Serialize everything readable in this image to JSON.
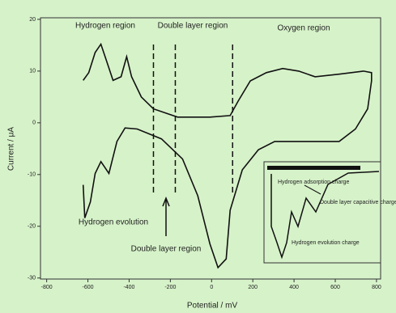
{
  "chart_data": {
    "type": "line",
    "x_label": "Potential / mV",
    "y_label": "Current / μA",
    "xlim": [
      -830,
      820
    ],
    "ylim": [
      -30.2,
      20.3
    ],
    "xticks": [
      -800,
      -600,
      -400,
      -200,
      0,
      200,
      400,
      600,
      800
    ],
    "yticks": [
      -30,
      -20,
      -10,
      0,
      10,
      20
    ],
    "region_lines": [
      -282,
      -176,
      102
    ],
    "series": [
      {
        "color": "#111111",
        "x": [
          -623,
          -596,
          -565,
          -537,
          -510,
          -478,
          -439,
          -412,
          -388,
          -341,
          -282,
          -165,
          -8,
          90,
          129,
          188,
          266,
          345,
          423,
          502,
          619,
          737,
          776,
          776,
          757,
          698,
          619,
          463,
          306,
          227,
          149,
          90,
          71,
          31,
          -8,
          -67,
          -141,
          -243,
          -361,
          -420,
          -459,
          -498,
          -537,
          -565,
          -588,
          -615,
          -623
        ],
        "y": [
          8.2,
          9.7,
          13.6,
          15.2,
          12.0,
          8.2,
          8.9,
          12.8,
          8.9,
          5.0,
          2.7,
          1.1,
          1.1,
          1.4,
          4.2,
          8.1,
          9.7,
          10.5,
          10.0,
          8.9,
          9.4,
          10.0,
          9.7,
          8.1,
          2.7,
          -1.2,
          -3.6,
          -3.6,
          -3.6,
          -5.2,
          -9.1,
          -16.9,
          -26.3,
          -28.0,
          -23.4,
          -14.1,
          -7.0,
          -3.1,
          -1.2,
          -1.0,
          -3.6,
          -9.8,
          -7.5,
          -9.8,
          -15.3,
          -18.4,
          -12.0
        ]
      }
    ],
    "annotations": [
      "Hydrogen region",
      "Double layer region",
      "Oxygen region",
      "Hydrogen evolution",
      "Double layer region",
      "Hydrogen adsorption charge",
      "Double layer capacitive charge",
      "Hydrogen evolution charge"
    ]
  }
}
